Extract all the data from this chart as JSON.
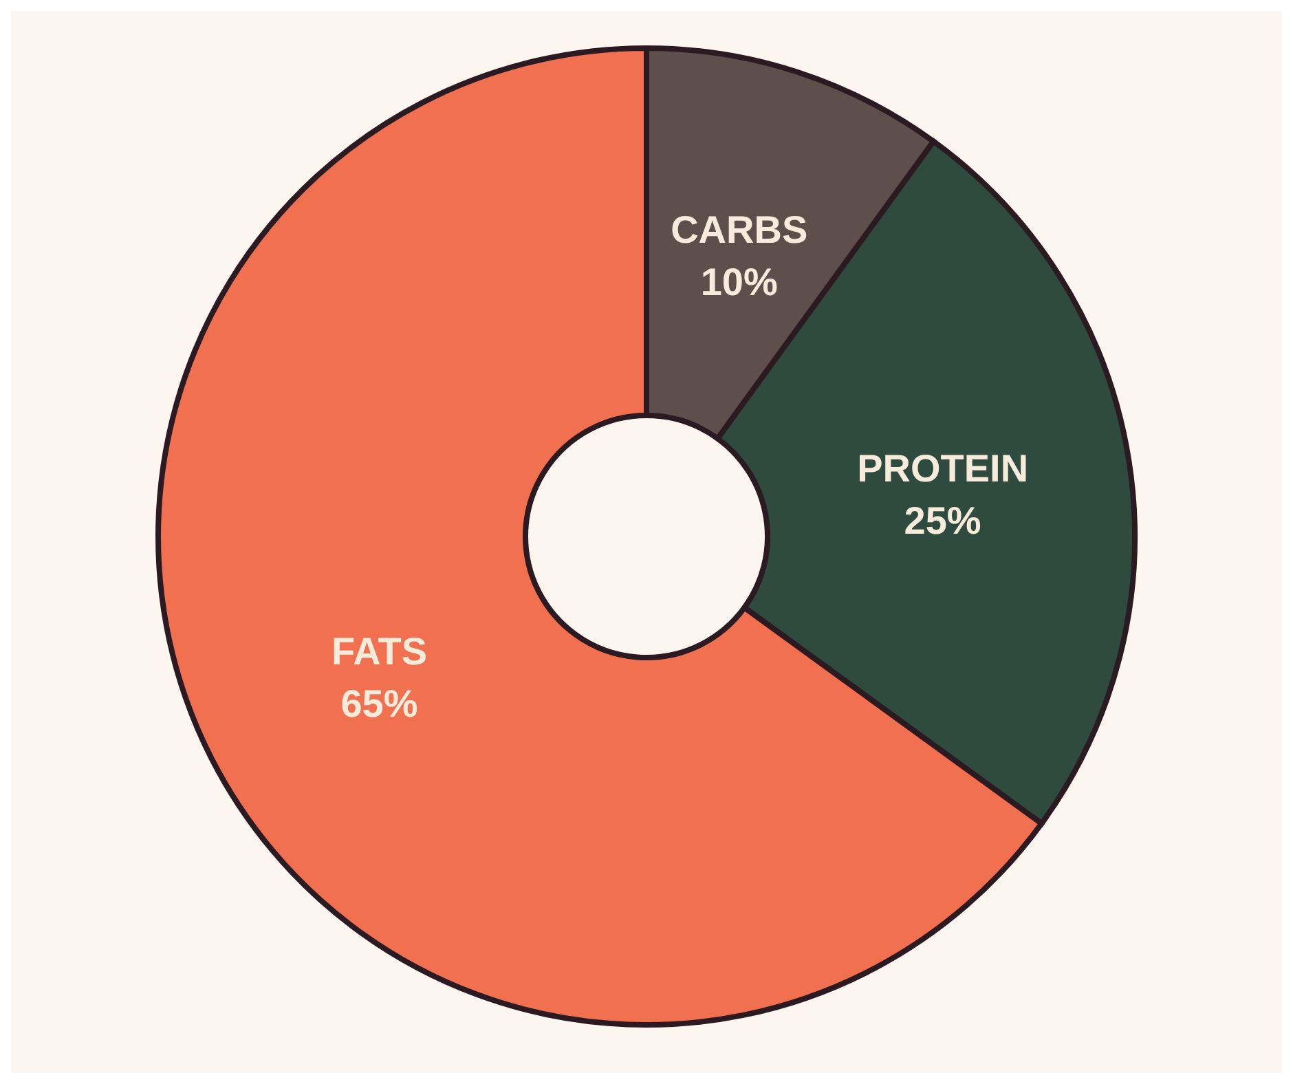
{
  "chart_data": {
    "type": "donut",
    "categories": [
      "CARBS",
      "PROTEIN",
      "FATS"
    ],
    "values": [
      10,
      25,
      65
    ],
    "value_labels": [
      "10%",
      "25%",
      "65%"
    ],
    "colors": [
      "#5e4f4d",
      "#2f4a3f",
      "#f07050"
    ],
    "legend": false
  }
}
